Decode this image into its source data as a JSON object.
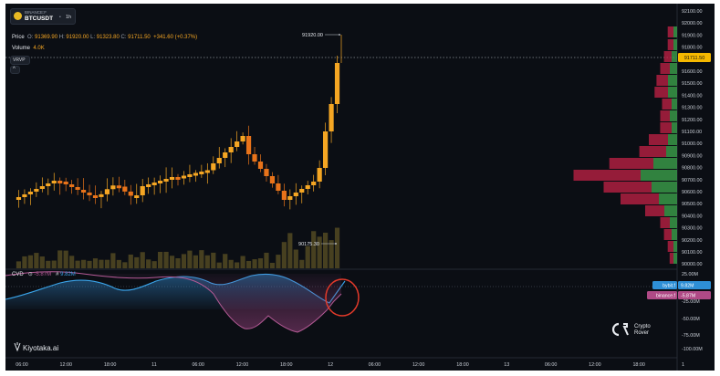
{
  "symbol": {
    "exchange": "BINANCE:F",
    "name": "BTCUSDT",
    "timeframe": "1h",
    "separator": "•"
  },
  "price_legend": {
    "label": "Price",
    "o_label": "O:",
    "o": "91369.90",
    "h_label": "H:",
    "h": "91920.00",
    "l_label": "L:",
    "l": "91323.80",
    "c_label": "C:",
    "c": "91711.50",
    "change": "+341.60 (+0.37%)"
  },
  "volume_legend": {
    "label": "Volume",
    "value": "4.0K"
  },
  "vrvp_label": "VRVP",
  "collapse_glyph": "^",
  "annotations": {
    "high": "91920.00",
    "low": "90175.30"
  },
  "current_price_tag": "91711.50",
  "cvd": {
    "label": "CVD",
    "binance_glyph": "⊙",
    "binance_value": "-5.87M",
    "bybit_glyph": "#",
    "bybit_value": "9.82M",
    "tag_bybit_name": "bybit.f",
    "tag_bybit_value": "9.82M",
    "tag_binance_name": "binance.f",
    "tag_binance_value": "-5.87M"
  },
  "price_axis": [
    "92100.00",
    "92000.00",
    "91900.00",
    "91800.00",
    "91700.00",
    "91600.00",
    "91500.00",
    "91400.00",
    "91300.00",
    "91200.00",
    "91100.00",
    "91000.00",
    "90900.00",
    "90800.00",
    "90700.00",
    "90600.00",
    "90500.00",
    "90400.00",
    "90300.00",
    "90200.00",
    "90100.00",
    "90000.00"
  ],
  "cvd_axis": [
    "25.00M",
    "0.00",
    "-25.00M",
    "-50.00M",
    "-75.00M",
    "-100.00M"
  ],
  "time_axis": [
    "06:00",
    "12:00",
    "18:00",
    "11",
    "06:00",
    "12:00",
    "18:00",
    "12",
    "06:00",
    "12:00",
    "18:00",
    "13",
    "06:00",
    "12:00",
    "18:00",
    "1"
  ],
  "watermark": {
    "name": "Kiyotaka.ai",
    "brand_line1": "Crypto",
    "brand_line2": "Rover"
  },
  "colors": {
    "up": "#f5a623",
    "down": "#e8731a",
    "cvd_bybit": "#3aa3e8",
    "cvd_binance": "#b45a95",
    "vp_buy": "#3faa4e",
    "vp_sell": "#c42146",
    "highlight_circle": "#e23a2a"
  }
}
